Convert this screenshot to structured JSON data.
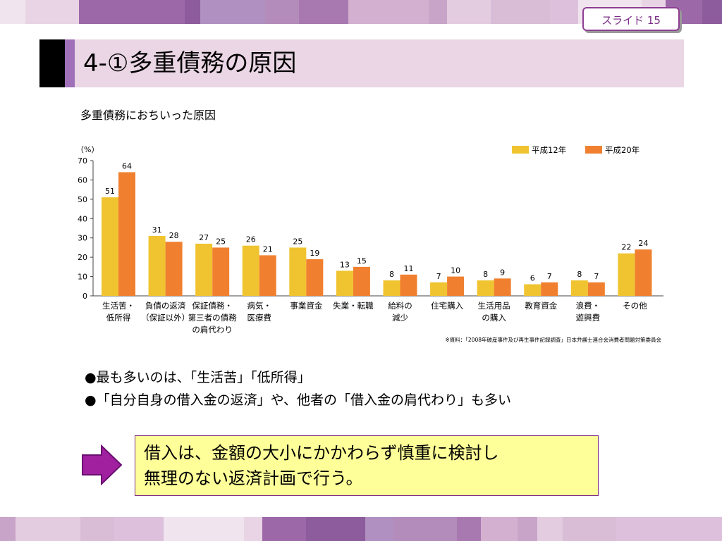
{
  "slide_label": "スライド  15",
  "title": "4-①多重債務の原因",
  "subtitle": "多重債務におちいった原因",
  "colors": {
    "series1": "#f0c430",
    "series2": "#f08030",
    "title_bar": "#ead6e4",
    "accent": "#8e3d93",
    "callout_bg": "#ffff99"
  },
  "chart_data": {
    "type": "bar",
    "ylabel": "（%）",
    "ylim": [
      0,
      70
    ],
    "yticks": [
      0,
      10,
      20,
      30,
      40,
      50,
      60,
      70
    ],
    "categories": [
      [
        "生活苦・",
        "低所得"
      ],
      [
        "負債の返済",
        "（保証以外）"
      ],
      [
        "保証債務・",
        "第三者の債務",
        "の肩代わり"
      ],
      [
        "病気・",
        "医療費"
      ],
      [
        "事業資金"
      ],
      [
        "失業・転職"
      ],
      [
        "給料の",
        "減少"
      ],
      [
        "住宅購入"
      ],
      [
        "生活用品",
        "の購入"
      ],
      [
        "教育資金"
      ],
      [
        "浪費・",
        "遊興費"
      ],
      [
        "その他"
      ]
    ],
    "series": [
      {
        "name": "平成12年",
        "values": [
          51,
          31,
          27,
          26,
          25,
          13,
          8,
          7,
          8,
          6,
          8,
          22
        ]
      },
      {
        "name": "平成20年",
        "values": [
          64,
          28,
          25,
          21,
          19,
          15,
          11,
          10,
          9,
          7,
          7,
          24
        ]
      }
    ],
    "legend_position": "top-right",
    "source_note": "※資料：「2008年破産事件及び再生事件記録調査」日本弁護士連合会消費者問題対策委員会"
  },
  "bullets": [
    "●最も多いのは、「生活苦」「低所得」",
    "●「自分自身の借入金の返済」や、他者の「借入金の肩代わり」も多い"
  ],
  "callout": {
    "arrow_icon": "right-arrow-icon",
    "lines": [
      "借入は、金額の大小にかかわらず慎重に検討し",
      "無理のない返済計画で行う。"
    ]
  }
}
